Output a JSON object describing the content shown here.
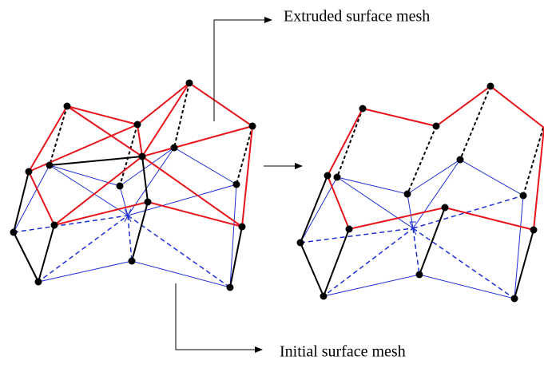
{
  "labels": {
    "top": "Extruded surface mesh",
    "bottom": "Initial surface mesh"
  }
}
